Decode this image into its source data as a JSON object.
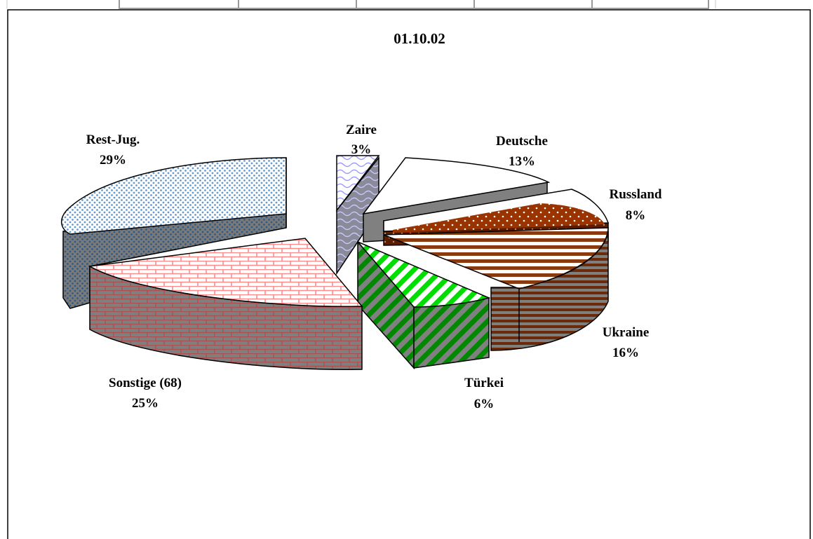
{
  "chart_data": {
    "type": "pie",
    "title": "01.10.02",
    "three_d": true,
    "exploded": true,
    "slices": [
      {
        "name": "Deutsche",
        "percent": 13,
        "label": "13%"
      },
      {
        "name": "Russland",
        "percent": 8,
        "label": "8%"
      },
      {
        "name": "Ukraine",
        "percent": 16,
        "label": "16%"
      },
      {
        "name": "Türkei",
        "percent": 6,
        "label": "6%"
      },
      {
        "name": "Sonstige (68)",
        "percent": 25,
        "label": "25%"
      },
      {
        "name": "Rest-Jug.",
        "percent": 29,
        "label": "29%"
      },
      {
        "name": "Zaire",
        "percent": 3,
        "label": "3%"
      }
    ]
  },
  "colors": {
    "deutsche_top": "#ffffff",
    "deutsche_side": "#808080",
    "russland_top": "#993300",
    "ukraine_top": "#8b3a0f",
    "tuerkei_top": "#00cc00",
    "sonstige_top": "#ff9999",
    "restjug_top": "#6699cc",
    "zaire_top": "#9999ff",
    "outline": "#000000"
  }
}
